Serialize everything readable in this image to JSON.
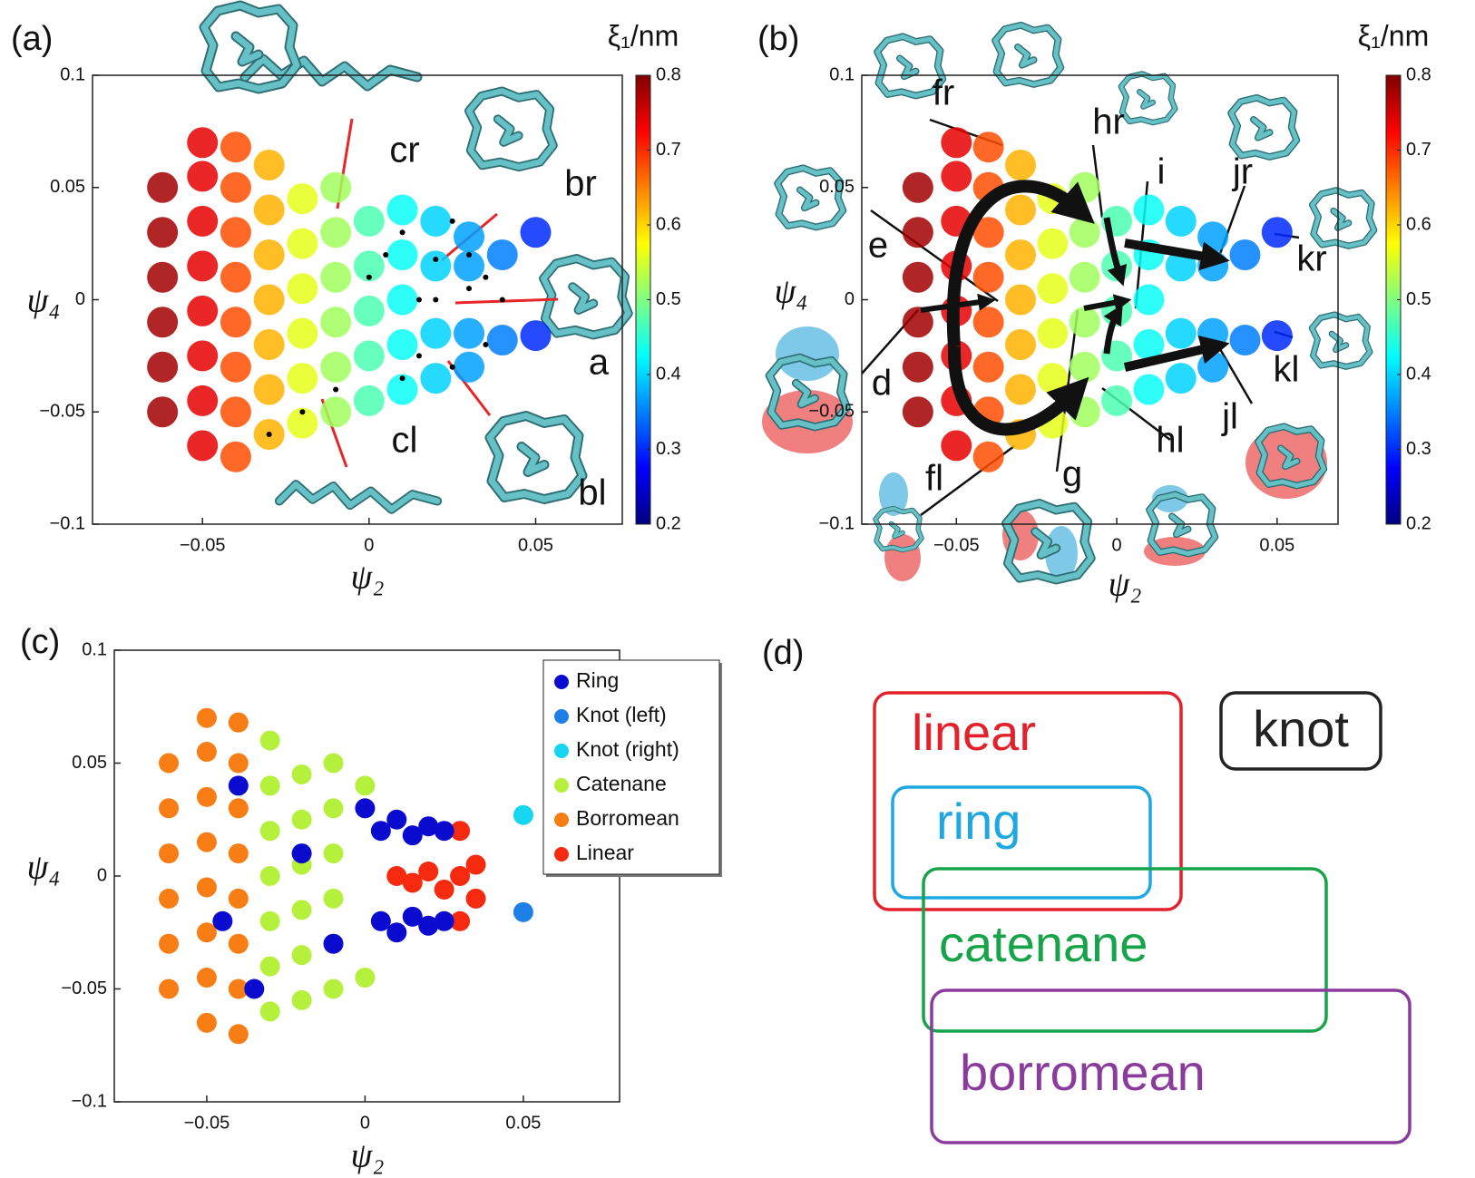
{
  "chart_data": [
    {
      "type": "scatter",
      "panel_label": "(a)",
      "xlabel": "ψ₂",
      "ylabel": "ψ₄",
      "xlim": [
        -0.083,
        0.076
      ],
      "ylim": [
        -0.1,
        0.1
      ],
      "xticks": [
        {
          "value": -0.05,
          "label": "−0.05"
        },
        0,
        0.05
      ],
      "yticks": [
        {
          "value": -0.1,
          "label": "−0.1"
        },
        {
          "value": -0.05,
          "label": "−0.05"
        },
        0,
        0.05,
        0.1
      ],
      "colormap": "jet",
      "colorbar": {
        "label": "ξ₁/nm",
        "lim": [
          0.2,
          0.8
        ],
        "ticks": [
          0.2,
          0.3,
          0.4,
          0.5,
          0.6,
          0.7,
          0.8
        ]
      },
      "series": [
        {
          "x": [
            -0.062,
            -0.062,
            -0.062,
            -0.062,
            -0.062,
            -0.062,
            -0.05,
            -0.05,
            -0.05,
            -0.05,
            -0.05,
            -0.05,
            -0.05,
            -0.05,
            -0.04,
            -0.04,
            -0.04,
            -0.04,
            -0.04,
            -0.04,
            -0.04,
            -0.04,
            -0.03,
            -0.03,
            -0.03,
            -0.03,
            -0.03,
            -0.03,
            -0.03,
            -0.02,
            -0.02,
            -0.02,
            -0.02,
            -0.02,
            -0.02,
            -0.01,
            -0.01,
            -0.01,
            -0.01,
            -0.01,
            -0.01,
            0,
            0,
            0,
            0,
            0,
            0.01,
            0.01,
            0.01,
            0.01,
            0.01,
            0.02,
            0.02,
            0.02,
            0.02,
            0.03,
            0.03,
            0.03,
            0.03,
            0.04,
            0.04,
            0.05,
            0.05
          ],
          "y": [
            -0.05,
            -0.03,
            -0.01,
            0.01,
            0.03,
            0.05,
            -0.065,
            -0.045,
            -0.025,
            -0.005,
            0.015,
            0.035,
            0.055,
            0.07,
            -0.07,
            -0.05,
            -0.03,
            -0.01,
            0.01,
            0.03,
            0.05,
            0.068,
            -0.06,
            -0.04,
            -0.02,
            0,
            0.02,
            0.04,
            0.06,
            -0.055,
            -0.035,
            -0.015,
            0.005,
            0.025,
            0.045,
            -0.05,
            -0.03,
            -0.01,
            0.01,
            0.03,
            0.05,
            -0.045,
            -0.025,
            -0.005,
            0.015,
            0.035,
            -0.04,
            -0.02,
            0,
            0.02,
            0.04,
            -0.035,
            -0.015,
            0.015,
            0.035,
            -0.03,
            -0.015,
            0.015,
            0.028,
            -0.018,
            0.02,
            0.03,
            -0.016
          ],
          "z": [
            0.78,
            0.78,
            0.78,
            0.78,
            0.78,
            0.78,
            0.74,
            0.74,
            0.74,
            0.74,
            0.74,
            0.74,
            0.74,
            0.74,
            0.68,
            0.68,
            0.68,
            0.68,
            0.68,
            0.68,
            0.68,
            0.68,
            0.62,
            0.62,
            0.62,
            0.62,
            0.62,
            0.62,
            0.62,
            0.56,
            0.56,
            0.56,
            0.56,
            0.56,
            0.56,
            0.52,
            0.52,
            0.52,
            0.52,
            0.52,
            0.52,
            0.47,
            0.47,
            0.47,
            0.47,
            0.47,
            0.43,
            0.43,
            0.43,
            0.43,
            0.43,
            0.4,
            0.4,
            0.4,
            0.4,
            0.37,
            0.37,
            0.37,
            0.37,
            0.35,
            0.35,
            0.3,
            0.3
          ]
        },
        {
          "color": "#000000",
          "x": [
            0.005,
            0.01,
            0.015,
            0.02,
            0.025,
            0.03,
            0.035,
            0.02,
            0.03,
            0.04,
            0.01,
            0.025,
            -0.01,
            -0.02,
            -0.03,
            0.0,
            0.015,
            0.035
          ],
          "y": [
            0.02,
            0.03,
            -0.025,
            0.018,
            -0.03,
            0.02,
            -0.02,
            0.0,
            0.005,
            0.0,
            -0.035,
            0.035,
            -0.04,
            -0.05,
            -0.06,
            0.01,
            0.0,
            0.01
          ]
        }
      ],
      "annotations": [
        "cr",
        "br",
        "a",
        "bl",
        "cl"
      ]
    },
    {
      "type": "scatter",
      "panel_label": "(b)",
      "xlabel": "ψ₂",
      "ylabel": "ψ₄",
      "xlim": [
        -0.0795,
        0.069
      ],
      "ylim": [
        -0.1,
        0.1
      ],
      "xticks": [
        {
          "value": -0.05,
          "label": "−0.05"
        },
        0,
        0.05
      ],
      "yticks": [
        {
          "value": -0.1,
          "label": "−0.1"
        },
        {
          "value": -0.05,
          "label": "−0.05"
        },
        0,
        0.05,
        0.1
      ],
      "colormap": "jet",
      "colorbar": {
        "label": "ξ₁/nm",
        "lim": [
          0.2,
          0.8
        ],
        "ticks": [
          0.2,
          0.3,
          0.4,
          0.5,
          0.6,
          0.7,
          0.8
        ]
      },
      "series": [
        {
          "x": [
            -0.062,
            -0.062,
            -0.062,
            -0.062,
            -0.062,
            -0.062,
            -0.05,
            -0.05,
            -0.05,
            -0.05,
            -0.05,
            -0.05,
            -0.05,
            -0.05,
            -0.04,
            -0.04,
            -0.04,
            -0.04,
            -0.04,
            -0.04,
            -0.04,
            -0.04,
            -0.03,
            -0.03,
            -0.03,
            -0.03,
            -0.03,
            -0.03,
            -0.03,
            -0.02,
            -0.02,
            -0.02,
            -0.02,
            -0.02,
            -0.02,
            -0.01,
            -0.01,
            -0.01,
            -0.01,
            -0.01,
            -0.01,
            0,
            0,
            0,
            0,
            0,
            0.01,
            0.01,
            0.01,
            0.01,
            0.01,
            0.02,
            0.02,
            0.02,
            0.02,
            0.03,
            0.03,
            0.03,
            0.03,
            0.04,
            0.04,
            0.05,
            0.05
          ],
          "y": [
            -0.05,
            -0.03,
            -0.01,
            0.01,
            0.03,
            0.05,
            -0.065,
            -0.045,
            -0.025,
            -0.005,
            0.015,
            0.035,
            0.055,
            0.07,
            -0.07,
            -0.05,
            -0.03,
            -0.01,
            0.01,
            0.03,
            0.05,
            0.068,
            -0.06,
            -0.04,
            -0.02,
            0,
            0.02,
            0.04,
            0.06,
            -0.055,
            -0.035,
            -0.015,
            0.005,
            0.025,
            0.045,
            -0.05,
            -0.03,
            -0.01,
            0.01,
            0.03,
            0.05,
            -0.045,
            -0.025,
            -0.005,
            0.015,
            0.035,
            -0.04,
            -0.02,
            0,
            0.02,
            0.04,
            -0.035,
            -0.015,
            0.015,
            0.035,
            -0.03,
            -0.015,
            0.015,
            0.028,
            -0.018,
            0.02,
            0.03,
            -0.016
          ],
          "z": [
            0.78,
            0.78,
            0.78,
            0.78,
            0.78,
            0.78,
            0.74,
            0.74,
            0.74,
            0.74,
            0.74,
            0.74,
            0.74,
            0.74,
            0.68,
            0.68,
            0.68,
            0.68,
            0.68,
            0.68,
            0.68,
            0.68,
            0.62,
            0.62,
            0.62,
            0.62,
            0.62,
            0.62,
            0.62,
            0.56,
            0.56,
            0.56,
            0.56,
            0.56,
            0.56,
            0.52,
            0.52,
            0.52,
            0.52,
            0.52,
            0.52,
            0.47,
            0.47,
            0.47,
            0.47,
            0.47,
            0.43,
            0.43,
            0.43,
            0.43,
            0.43,
            0.4,
            0.4,
            0.4,
            0.4,
            0.37,
            0.37,
            0.37,
            0.37,
            0.35,
            0.35,
            0.3,
            0.3
          ]
        }
      ],
      "annotations": [
        "fr",
        "hr",
        "i",
        "jr",
        "kr",
        "e",
        "d",
        "kl",
        "jl",
        "hl",
        "g",
        "fl"
      ]
    },
    {
      "type": "scatter",
      "panel_label": "(c)",
      "xlabel": "ψ₂",
      "ylabel": "ψ₄",
      "xlim": [
        -0.0792,
        0.0804
      ],
      "ylim": [
        -0.1,
        0.1
      ],
      "xticks": [
        {
          "value": -0.05,
          "label": "−0.05"
        },
        0,
        0.05
      ],
      "yticks": [
        {
          "value": -0.1,
          "label": "−0.1"
        },
        {
          "value": -0.05,
          "label": "−0.05"
        },
        0,
        0.05,
        0.1
      ],
      "legend": "upper right",
      "series": [
        {
          "name": "Ring",
          "color": "#0b0bd0",
          "x": [
            0.005,
            0.01,
            0.015,
            0.02,
            0.025,
            0.005,
            0.01,
            0.015,
            0.02,
            0.025,
            -0.04,
            -0.035,
            -0.02,
            -0.01,
            -0.045,
            0.0
          ],
          "y": [
            0.02,
            0.025,
            0.018,
            0.022,
            0.02,
            -0.02,
            -0.025,
            -0.018,
            -0.022,
            -0.02,
            0.04,
            -0.05,
            0.01,
            -0.03,
            -0.02,
            0.03
          ]
        },
        {
          "name": "Knot (left)",
          "color": "#1e7fe6",
          "x": [
            0.05
          ],
          "y": [
            -0.016
          ]
        },
        {
          "name": "Knot (right)",
          "color": "#15d5f0",
          "x": [
            0.05
          ],
          "y": [
            0.027
          ]
        },
        {
          "name": "Catenane",
          "color": "#b5f03c",
          "x": [
            -0.03,
            -0.03,
            -0.03,
            -0.03,
            -0.03,
            -0.03,
            -0.03,
            -0.02,
            -0.02,
            -0.02,
            -0.02,
            -0.02,
            -0.02,
            -0.01,
            -0.01,
            -0.01,
            -0.01,
            -0.01,
            -0.01,
            0,
            0
          ],
          "y": [
            -0.06,
            -0.04,
            -0.02,
            0,
            0.02,
            0.04,
            0.06,
            -0.055,
            -0.035,
            -0.015,
            0.005,
            0.025,
            0.045,
            -0.05,
            -0.03,
            -0.01,
            0.01,
            0.03,
            0.05,
            -0.045,
            0.04
          ]
        },
        {
          "name": "Borromean",
          "color": "#f77d14",
          "x": [
            -0.062,
            -0.062,
            -0.062,
            -0.062,
            -0.062,
            -0.062,
            -0.05,
            -0.05,
            -0.05,
            -0.05,
            -0.05,
            -0.05,
            -0.05,
            -0.05,
            -0.04,
            -0.04,
            -0.04,
            -0.04,
            -0.04,
            -0.04,
            -0.04,
            -0.04
          ],
          "y": [
            -0.05,
            -0.03,
            -0.01,
            0.01,
            0.03,
            0.05,
            -0.065,
            -0.045,
            -0.025,
            -0.005,
            0.015,
            0.035,
            0.055,
            0.07,
            -0.07,
            -0.05,
            -0.03,
            -0.01,
            0.01,
            0.03,
            0.05,
            0.068
          ]
        },
        {
          "name": "Linear",
          "color": "#f52a0f",
          "x": [
            0.03,
            0.03,
            0.03,
            0.035,
            0.02,
            0.015,
            0.01,
            0.025,
            0.035
          ],
          "y": [
            0.02,
            0,
            -0.02,
            0.005,
            0.002,
            -0.003,
            0.0,
            -0.006,
            -0.01
          ]
        }
      ]
    }
  ],
  "panel_d": {
    "label": "(d)",
    "sets": [
      {
        "name": "linear",
        "color": "#e3212b"
      },
      {
        "name": "knot",
        "color": "#222222"
      },
      {
        "name": "ring",
        "color": "#1ea7e1"
      },
      {
        "name": "catenane",
        "color": "#17a34a"
      },
      {
        "name": "borromean",
        "color": "#8a3b9c"
      }
    ]
  }
}
